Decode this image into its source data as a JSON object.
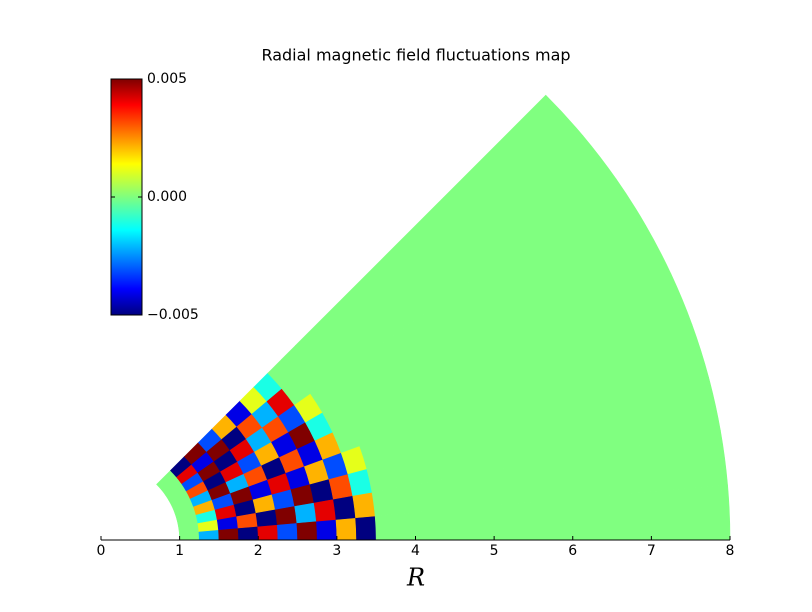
{
  "chart_data": {
    "type": "polar-heatmap",
    "title": "Radial magnetic field fluctuations map",
    "xlabel": "R",
    "xlim": [
      0,
      8
    ],
    "xticks": [
      0,
      1,
      2,
      3,
      4,
      5,
      6,
      7,
      8
    ],
    "r_edges": [
      1,
      1.25,
      1.5,
      1.75,
      2,
      2.25,
      2.5,
      2.75,
      3,
      3.25,
      3.5,
      8
    ],
    "theta_edges": [
      0,
      5,
      10,
      15,
      20,
      25,
      30,
      35,
      40,
      45
    ],
    "z": [
      [
        0,
        -0.002,
        0.005,
        -0.005,
        0.004,
        -0.003,
        0.005,
        -0.004,
        0.002,
        -0.005,
        0
      ],
      [
        0,
        0.001,
        -0.004,
        0.003,
        -0.005,
        0.005,
        -0.002,
        0.004,
        -0.005,
        0.002,
        0
      ],
      [
        0,
        -0.001,
        0.004,
        -0.005,
        0.002,
        -0.003,
        0.005,
        -0.005,
        0.003,
        -0.001,
        0
      ],
      [
        0,
        0.002,
        -0.003,
        0.005,
        -0.004,
        0.004,
        -0.004,
        0.002,
        -0.003,
        0.001,
        0
      ],
      [
        0,
        -0.002,
        0.005,
        -0.002,
        0.003,
        -0.005,
        0.003,
        -0.004,
        0.002,
        0,
        0
      ],
      [
        0,
        0.003,
        -0.005,
        0.004,
        -0.003,
        0.002,
        -0.004,
        0.005,
        -0.001,
        0,
        0
      ],
      [
        0,
        -0.003,
        0.005,
        -0.005,
        0.004,
        -0.002,
        0.003,
        -0.003,
        0.001,
        0,
        0
      ],
      [
        0,
        0.004,
        -0.004,
        0.005,
        -0.005,
        0.003,
        -0.002,
        0.004,
        0,
        0,
        0
      ],
      [
        0,
        -0.005,
        0.005,
        -0.003,
        0.002,
        -0.004,
        0.001,
        -0.001,
        0,
        0,
        0
      ]
    ],
    "colormap": "jet",
    "clim": [
      -0.005,
      0.005
    ],
    "cticks": [
      {
        "value": -0.005,
        "label": "−0.005"
      },
      {
        "value": 0,
        "label": "0.000"
      },
      0.005
    ]
  }
}
